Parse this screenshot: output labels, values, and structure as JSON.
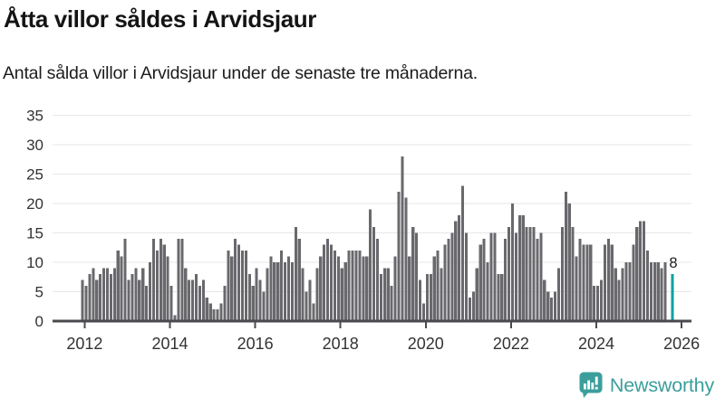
{
  "header": {
    "title": "Åtta villor såldes i Arvidsjaur",
    "subtitle": "Antal sålda villor i Arvidsjaur under de senaste tre månaderna."
  },
  "chart_data": {
    "type": "bar",
    "title": "Åtta villor såldes i Arvidsjaur",
    "subtitle": "Antal sålda villor i Arvidsjaur under de senaste tre månaderna.",
    "ylabel": "",
    "xlabel": "",
    "ylim": [
      0,
      35
    ],
    "yticks": [
      0,
      5,
      10,
      15,
      20,
      25,
      30,
      35
    ],
    "xticks": [
      2012,
      2014,
      2016,
      2018,
      2020,
      2022,
      2024,
      2026
    ],
    "grid": true,
    "legend": "none",
    "start_month": "2011-12",
    "frequency": "monthly-rolling-3-months",
    "values": [
      7,
      6,
      8,
      9,
      7,
      8,
      9,
      9,
      8,
      9,
      12,
      11,
      14,
      7,
      8,
      9,
      7,
      9,
      6,
      10,
      14,
      12,
      14,
      13,
      11,
      6,
      1,
      14,
      14,
      9,
      7,
      7,
      8,
      6,
      7,
      4,
      3,
      2,
      2,
      3,
      6,
      12,
      11,
      14,
      13,
      12,
      12,
      8,
      6,
      9,
      7,
      5,
      9,
      11,
      10,
      10,
      12,
      10,
      11,
      10,
      16,
      14,
      9,
      5,
      7,
      3,
      9,
      11,
      13,
      14,
      13,
      12,
      11,
      9,
      10,
      12,
      12,
      12,
      12,
      11,
      11,
      19,
      16,
      14,
      8,
      9,
      9,
      6,
      11,
      22,
      28,
      21,
      11,
      16,
      15,
      7,
      3,
      8,
      8,
      11,
      12,
      9,
      13,
      14,
      15,
      17,
      18,
      23,
      15,
      4,
      5,
      9,
      13,
      14,
      10,
      15,
      15,
      8,
      8,
      14,
      16,
      20,
      15,
      18,
      18,
      16,
      16,
      16,
      14,
      15,
      7,
      5,
      4,
      5,
      9,
      16,
      22,
      20,
      16,
      11,
      14,
      13,
      13,
      13,
      6,
      6,
      7,
      13,
      14,
      13,
      9,
      7,
      9,
      10,
      10,
      13,
      16,
      17,
      17,
      12,
      10,
      10,
      10,
      9,
      10,
      null,
      8
    ],
    "highlight_index": 166,
    "highlight_label": "8",
    "colors": {
      "bar": "#69696D",
      "highlight": "#00A2A6",
      "grid": "#E7E7E7",
      "axis": "#4A4A4E",
      "tick_text": "#333333",
      "value_label": "#1c1c1c"
    }
  },
  "footer": {
    "brand": "Newsworthy",
    "brand_color": "#3B9E9C"
  }
}
